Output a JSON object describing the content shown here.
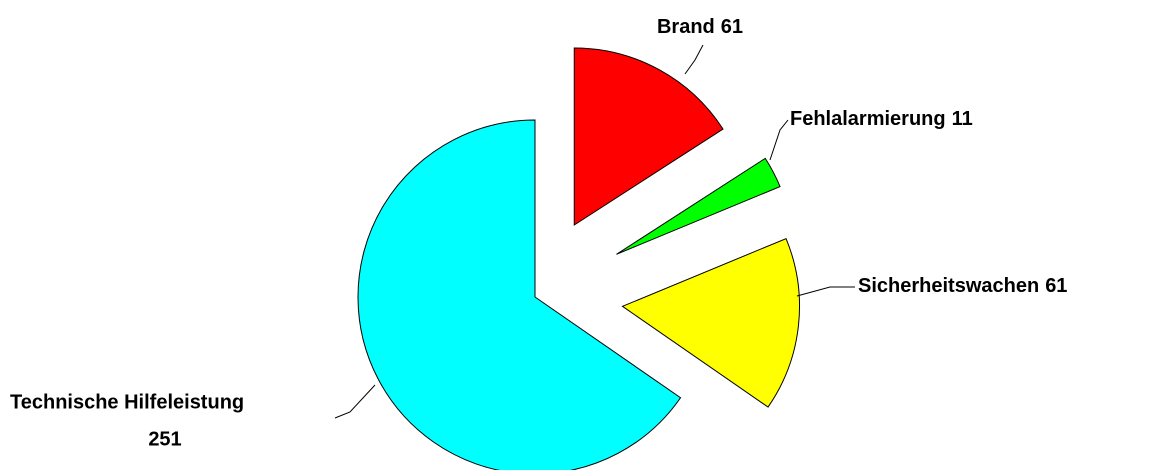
{
  "chart_data": {
    "type": "pie",
    "categories": [
      "Brand",
      "Fehlalarmierung",
      "Sicherheitswachen",
      "Technische Hilfeleistung"
    ],
    "values": [
      61,
      11,
      61,
      251
    ],
    "colors": [
      "#ff0000",
      "#00ff00",
      "#ffff00",
      "#00ffff"
    ],
    "exploded": true
  }
}
